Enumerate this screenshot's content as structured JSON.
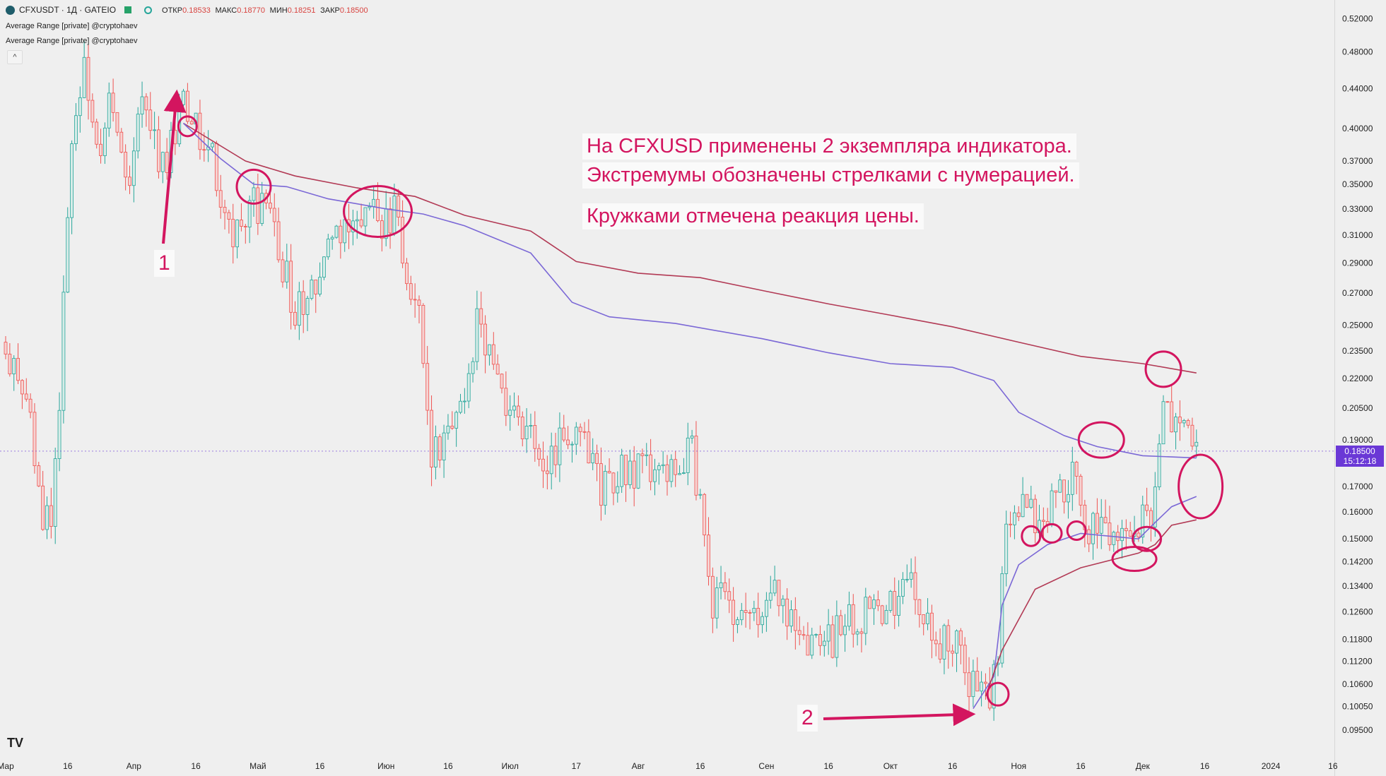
{
  "header": {
    "symbol": "CFXUSDT · 1Д · GATEIO",
    "open_label": "ОТКР",
    "open_value": "0.18533",
    "high_label": "МАКС",
    "high_value": "0.18770",
    "low_label": "МИН",
    "low_value": "0.18251",
    "close_label": "ЗАКР",
    "close_value": "0.18500",
    "indicator_1": "Average Range [private] @cryptohaev",
    "indicator_2": "Average Range [private] @cryptohaev",
    "collapse_symbol": "^"
  },
  "price_tag": {
    "price": "0.18500",
    "countdown": "15:12:18"
  },
  "annotations": {
    "line1": "На CFXUSD применены 2 экземпляра индикатора.",
    "line2": "Экстремумы обозначены стрелками с нумерацией.",
    "line3": "Кружками отмечена реакция цены.",
    "marker_1": "1",
    "marker_2": "2"
  },
  "logo": "TV",
  "colors": {
    "up": "#26a69a",
    "down": "#ef5350",
    "slow_line": "#b23a55",
    "fast_line": "#7b68d6",
    "annotation": "#d3155f",
    "price_tag": "#6a38d6"
  },
  "chart_data": {
    "type": "candlestick",
    "title": "CFXUSDT · 1Д · GATEIO",
    "scale": "log",
    "ylim": [
      0.092,
      0.53
    ],
    "price_ticks": [
      "0.52000",
      "0.48000",
      "0.44000",
      "0.40000",
      "0.37000",
      "0.35000",
      "0.33000",
      "0.31000",
      "0.29000",
      "0.27000",
      "0.25000",
      "0.23500",
      "0.22000",
      "0.20500",
      "0.19000",
      "0.17000",
      "0.16000",
      "0.15000",
      "0.14200",
      "0.13400",
      "0.12600",
      "0.11800",
      "0.11200",
      "0.10600",
      "0.10050",
      "0.09500"
    ],
    "time_ticks": [
      "Мар",
      "16",
      "Апр",
      "16",
      "Май",
      "16",
      "Июн",
      "16",
      "Июл",
      "17",
      "Авг",
      "16",
      "Сен",
      "16",
      "Окт",
      "16",
      "Ноя",
      "16",
      "Дек",
      "16",
      "2024",
      "16"
    ],
    "series": [
      {
        "name": "Average Range [private] @cryptohaev",
        "color": "#b23a55"
      },
      {
        "name": "Average Range [private] @cryptohaev",
        "color": "#7b68d6"
      }
    ],
    "slow_line_anchors": [
      [
        "2023-04-13",
        0.405
      ],
      [
        "2023-04-28",
        0.37
      ],
      [
        "2023-05-10",
        0.357
      ],
      [
        "2023-05-25",
        0.347
      ],
      [
        "2023-06-08",
        0.34
      ],
      [
        "2023-06-20",
        0.325
      ],
      [
        "2023-07-06",
        0.313
      ],
      [
        "2023-07-17",
        0.291
      ],
      [
        "2023-08-01",
        0.283
      ],
      [
        "2023-08-16",
        0.28
      ],
      [
        "2023-09-01",
        0.271
      ],
      [
        "2023-09-16",
        0.263
      ],
      [
        "2023-10-01",
        0.256
      ],
      [
        "2023-10-16",
        0.249
      ],
      [
        "2023-11-01",
        0.24
      ],
      [
        "2023-11-16",
        0.232
      ],
      [
        "2023-12-01",
        0.228
      ],
      [
        "2023-12-14",
        0.223
      ]
    ],
    "fast_line_anchors": [
      [
        "2023-04-13",
        0.405
      ],
      [
        "2023-04-22",
        0.372
      ],
      [
        "2023-04-30",
        0.35
      ],
      [
        "2023-05-08",
        0.348
      ],
      [
        "2023-05-18",
        0.338
      ],
      [
        "2023-06-01",
        0.33
      ],
      [
        "2023-06-10",
        0.326
      ],
      [
        "2023-06-20",
        0.317
      ],
      [
        "2023-07-06",
        0.297
      ],
      [
        "2023-07-16",
        0.264
      ],
      [
        "2023-07-25",
        0.255
      ],
      [
        "2023-08-10",
        0.251
      ],
      [
        "2023-08-31",
        0.242
      ],
      [
        "2023-09-16",
        0.234
      ],
      [
        "2023-10-01",
        0.228
      ],
      [
        "2023-10-16",
        0.226
      ],
      [
        "2023-10-26",
        0.219
      ],
      [
        "2023-11-01",
        0.203
      ],
      [
        "2023-11-12",
        0.192
      ],
      [
        "2023-11-20",
        0.187
      ],
      [
        "2023-12-01",
        0.183
      ],
      [
        "2023-12-14",
        0.182
      ]
    ],
    "lower_fast_anchors": [
      [
        "2023-10-21",
        0.1
      ],
      [
        "2023-10-26",
        0.108
      ],
      [
        "2023-10-28",
        0.128
      ],
      [
        "2023-11-01",
        0.141
      ],
      [
        "2023-11-08",
        0.148
      ],
      [
        "2023-11-16",
        0.152
      ],
      [
        "2023-11-30",
        0.15
      ],
      [
        "2023-12-04",
        0.156
      ],
      [
        "2023-12-08",
        0.162
      ],
      [
        "2023-12-14",
        0.166
      ]
    ],
    "lower_slow_anchors": [
      [
        "2023-10-24",
        0.103
      ],
      [
        "2023-10-28",
        0.115
      ],
      [
        "2023-11-05",
        0.133
      ],
      [
        "2023-11-16",
        0.14
      ],
      [
        "2023-11-30",
        0.145
      ],
      [
        "2023-12-04",
        0.148
      ],
      [
        "2023-12-08",
        0.155
      ],
      [
        "2023-12-14",
        0.157
      ]
    ],
    "candle_anchors": [
      [
        "2023-03-01",
        0.24
      ],
      [
        "2023-03-06",
        0.21
      ],
      [
        "2023-03-10",
        0.16
      ],
      [
        "2023-03-12",
        0.15
      ],
      [
        "2023-03-14",
        0.21
      ],
      [
        "2023-03-16",
        0.34
      ],
      [
        "2023-03-18",
        0.42
      ],
      [
        "2023-03-20",
        0.46
      ],
      [
        "2023-03-23",
        0.38
      ],
      [
        "2023-03-26",
        0.42
      ],
      [
        "2023-03-30",
        0.35
      ],
      [
        "2023-04-03",
        0.42
      ],
      [
        "2023-04-07",
        0.37
      ],
      [
        "2023-04-10",
        0.38
      ],
      [
        "2023-04-13",
        0.42
      ],
      [
        "2023-04-16",
        0.41
      ],
      [
        "2023-04-21",
        0.36
      ],
      [
        "2023-04-25",
        0.3
      ],
      [
        "2023-04-30",
        0.34
      ],
      [
        "2023-05-05",
        0.31
      ],
      [
        "2023-05-10",
        0.26
      ],
      [
        "2023-05-14",
        0.27
      ],
      [
        "2023-05-18",
        0.3
      ],
      [
        "2023-05-22",
        0.31
      ],
      [
        "2023-05-26",
        0.33
      ],
      [
        "2023-05-30",
        0.32
      ],
      [
        "2023-06-03",
        0.33
      ],
      [
        "2023-06-06",
        0.29
      ],
      [
        "2023-06-10",
        0.24
      ],
      [
        "2023-06-12",
        0.18
      ],
      [
        "2023-06-16",
        0.19
      ],
      [
        "2023-06-20",
        0.21
      ],
      [
        "2023-06-23",
        0.25
      ],
      [
        "2023-06-26",
        0.24
      ],
      [
        "2023-07-01",
        0.2
      ],
      [
        "2023-07-05",
        0.19
      ],
      [
        "2023-07-10",
        0.18
      ],
      [
        "2023-07-14",
        0.19
      ],
      [
        "2023-07-18",
        0.19
      ],
      [
        "2023-07-23",
        0.17
      ],
      [
        "2023-07-28",
        0.18
      ],
      [
        "2023-08-03",
        0.176
      ],
      [
        "2023-08-09",
        0.175
      ],
      [
        "2023-08-14",
        0.185
      ],
      [
        "2023-08-17",
        0.15
      ],
      [
        "2023-08-19",
        0.13
      ],
      [
        "2023-08-24",
        0.128
      ],
      [
        "2023-08-29",
        0.126
      ],
      [
        "2023-09-03",
        0.13
      ],
      [
        "2023-09-08",
        0.12
      ],
      [
        "2023-09-13",
        0.114
      ],
      [
        "2023-09-18",
        0.12
      ],
      [
        "2023-09-23",
        0.126
      ],
      [
        "2023-09-28",
        0.125
      ],
      [
        "2023-10-03",
        0.13
      ],
      [
        "2023-10-06",
        0.135
      ],
      [
        "2023-10-10",
        0.126
      ],
      [
        "2023-10-13",
        0.116
      ],
      [
        "2023-10-17",
        0.117
      ],
      [
        "2023-10-21",
        0.105
      ],
      [
        "2023-10-25",
        0.102
      ],
      [
        "2023-10-27",
        0.115
      ],
      [
        "2023-10-29",
        0.155
      ],
      [
        "2023-11-03",
        0.16
      ],
      [
        "2023-11-08",
        0.16
      ],
      [
        "2023-11-11",
        0.17
      ],
      [
        "2023-11-14",
        0.175
      ],
      [
        "2023-11-17",
        0.155
      ],
      [
        "2023-11-22",
        0.15
      ],
      [
        "2023-11-26",
        0.148
      ],
      [
        "2023-11-30",
        0.155
      ],
      [
        "2023-12-03",
        0.16
      ],
      [
        "2023-12-06",
        0.21
      ],
      [
        "2023-12-09",
        0.2
      ],
      [
        "2023-12-12",
        0.19
      ],
      [
        "2023-12-14",
        0.185
      ]
    ],
    "extremes": [
      {
        "label": "1",
        "date": "2023-04-12",
        "price": 0.445
      },
      {
        "label": "2",
        "date": "2023-10-24",
        "price": 0.0995
      }
    ],
    "reaction_circles": [
      [
        "2023-04-14",
        0.402
      ],
      [
        "2023-04-30",
        0.348
      ],
      [
        "2023-05-30",
        0.328
      ],
      [
        "2023-11-21",
        0.19
      ],
      [
        "2023-12-06",
        0.225
      ],
      [
        "2023-12-15",
        0.17
      ],
      [
        "2023-11-04",
        0.151
      ],
      [
        "2023-11-09",
        0.152
      ],
      [
        "2023-11-15",
        0.153
      ],
      [
        "2023-11-29",
        0.143
      ],
      [
        "2023-12-02",
        0.15
      ],
      [
        "2023-10-27",
        0.1035
      ]
    ]
  }
}
